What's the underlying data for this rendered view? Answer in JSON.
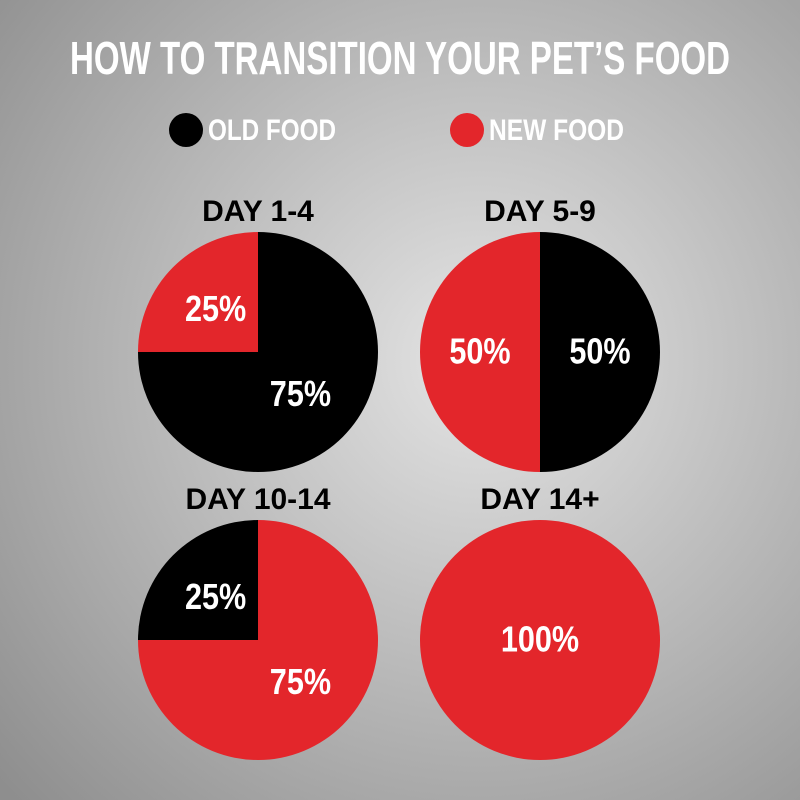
{
  "title": "HOW TO TRANSITION YOUR PET’S FOOD",
  "legend": [
    {
      "name": "OLD FOOD",
      "color": "#000000"
    },
    {
      "name": "NEW FOOD",
      "color": "#e3262b"
    }
  ],
  "chart_data": [
    {
      "type": "pie",
      "title": "DAY 1-4",
      "values": [
        75,
        25
      ],
      "value_labels": [
        "75%",
        "25%"
      ]
    },
    {
      "type": "pie",
      "title": "DAY 5-9",
      "values": [
        50,
        50
      ],
      "value_labels": [
        "50%",
        "50%"
      ]
    },
    {
      "type": "pie",
      "title": "DAY 10-14",
      "values": [
        25,
        75
      ],
      "value_labels": [
        "25%",
        "75%"
      ]
    },
    {
      "type": "pie",
      "title": "DAY 14+",
      "values": [
        0,
        100
      ],
      "value_labels": [
        null,
        "100%"
      ]
    }
  ]
}
